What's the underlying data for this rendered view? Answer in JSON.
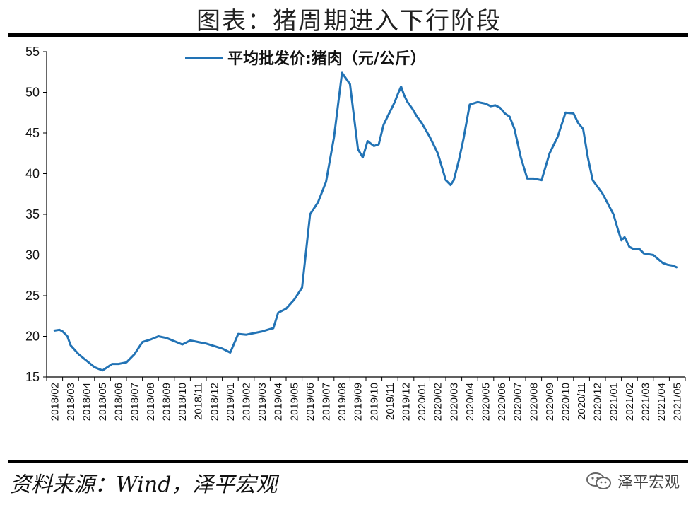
{
  "header": {
    "title": "图表：猪周期进入下行阶段"
  },
  "footer": {
    "source": "资料来源：Wind，泽平宏观",
    "watermark": "泽平宏观"
  },
  "colors": {
    "series": "#2273b5",
    "rule": "#000000"
  },
  "chart_data": {
    "type": "line",
    "title": "",
    "xlabel": "",
    "ylabel": "",
    "ylim": [
      15,
      55
    ],
    "yticks": [
      15,
      20,
      25,
      30,
      35,
      40,
      45,
      50,
      55
    ],
    "legend_position": "top-center",
    "grid": false,
    "xticks": [
      "2018/02",
      "2018/03",
      "2018/04",
      "2018/05",
      "2018/06",
      "2018/07",
      "2018/08",
      "2018/09",
      "2018/10",
      "2018/11",
      "2018/12",
      "2019/01",
      "2019/02",
      "2019/03",
      "2019/04",
      "2019/05",
      "2019/06",
      "2019/07",
      "2019/08",
      "2019/09",
      "2019/10",
      "2019/11",
      "2019/12",
      "2020/01",
      "2020/02",
      "2020/03",
      "2020/04",
      "2020/05",
      "2020/06",
      "2020/07",
      "2020/08",
      "2020/09",
      "2020/10",
      "2020/11",
      "2020/12",
      "2021/01",
      "2021/02",
      "2021/03",
      "2021/04",
      "2021/05"
    ],
    "series": [
      {
        "name": "平均批发价:猪肉（元/公斤）",
        "x": [
          0,
          0.3,
          0.5,
          0.8,
          1.0,
          1.5,
          2.0,
          2.5,
          3.0,
          3.3,
          3.6,
          4.0,
          4.5,
          5.0,
          5.5,
          6.0,
          6.5,
          7.0,
          7.5,
          8.0,
          8.5,
          9.0,
          9.5,
          10.0,
          10.5,
          11.0,
          11.5,
          12.0,
          12.5,
          13.0,
          13.5,
          13.7,
          14.0,
          14.5,
          15.0,
          15.5,
          16.0,
          16.5,
          17.0,
          17.5,
          18.0,
          18.5,
          19.0,
          19.3,
          19.6,
          20.0,
          20.3,
          20.6,
          20.9,
          21.1,
          21.3,
          21.5,
          21.7,
          21.9,
          22.1,
          22.4,
          22.7,
          23.0,
          23.5,
          24.0,
          24.5,
          24.8,
          25.0,
          25.3,
          25.6,
          26.0,
          26.5,
          27.0,
          27.3,
          27.6,
          27.9,
          28.2,
          28.5,
          28.8,
          29.2,
          29.6,
          30.0,
          30.5,
          31.0,
          31.5,
          32.0,
          32.5,
          32.8,
          33.1,
          33.4,
          33.7,
          34.0,
          34.3,
          34.6,
          35.0,
          35.3,
          35.5,
          35.7,
          36.0,
          36.3,
          36.6,
          36.9,
          37.2,
          37.5,
          37.8,
          38.1,
          38.4,
          38.7,
          38.95
        ],
        "values": [
          20.7,
          20.8,
          20.6,
          20.0,
          18.9,
          17.8,
          17.0,
          16.2,
          15.8,
          16.2,
          16.6,
          16.6,
          16.8,
          17.8,
          19.3,
          19.6,
          20.0,
          19.8,
          19.4,
          19.0,
          19.5,
          19.3,
          19.1,
          18.8,
          18.5,
          18.0,
          20.3,
          20.2,
          20.4,
          20.6,
          20.9,
          21.0,
          22.9,
          23.4,
          24.5,
          26.0,
          35.0,
          36.5,
          39.0,
          44.5,
          52.4,
          51.0,
          43.0,
          42.0,
          44.0,
          43.4,
          43.6,
          46.0,
          47.2,
          48.0,
          48.8,
          49.8,
          50.7,
          49.6,
          48.8,
          48.0,
          47.0,
          46.2,
          44.5,
          42.5,
          39.2,
          38.6,
          39.2,
          41.5,
          44.2,
          48.5,
          48.8,
          48.6,
          48.3,
          48.4,
          48.1,
          47.4,
          47.0,
          45.5,
          42.0,
          39.4,
          39.4,
          39.2,
          42.5,
          44.5,
          47.5,
          47.4,
          46.2,
          45.5,
          42.0,
          39.2,
          38.4,
          37.6,
          36.5,
          35.0,
          33.0,
          31.8,
          32.2,
          31.0,
          30.7,
          30.8,
          30.2,
          30.1,
          30.0,
          29.5,
          29.0,
          28.8,
          28.7,
          28.5
        ]
      }
    ]
  }
}
